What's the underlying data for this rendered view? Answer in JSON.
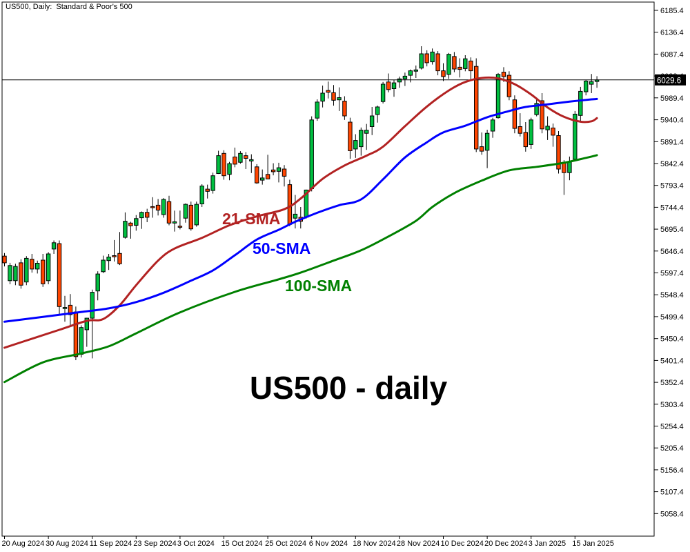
{
  "window": {
    "title": "US500, Daily:  Standard & Poor's 500"
  },
  "price_box": {
    "value": "6029.6"
  },
  "labels": {
    "main": "US500 - daily",
    "sma21": "21-SMA",
    "sma50": "50-SMA",
    "sma100": "100-SMA"
  },
  "colors": {
    "bull": "#00bf40",
    "bear": "#ff4500",
    "wick": "#000000",
    "candle_border": "#000000",
    "sma21": "#b22222",
    "sma50": "#0000ff",
    "sma100": "#008000",
    "price_line": "#000000",
    "price_box_bg": "#000000",
    "price_box_text": "#ffffff",
    "axis": "#000000",
    "background": "#ffffff"
  },
  "chart_data": {
    "type": "candlestick",
    "symbol": "US500",
    "timeframe": "Daily",
    "description": "Standard & Poor's 500",
    "title": "US500 - daily",
    "current_price": 6029.6,
    "grid": false,
    "y_axis": {
      "tick_step": 49.0,
      "ticks": [
        6185.4,
        6136.4,
        6087.4,
        6038.4,
        5989.4,
        5940.4,
        5891.4,
        5842.4,
        5793.4,
        5744.4,
        5695.4,
        5646.4,
        5597.4,
        5548.4,
        5499.4,
        5450.4,
        5401.4,
        5352.4,
        5303.4,
        5254.4,
        5205.4,
        5156.4,
        5107.4,
        5058.4
      ]
    },
    "x_axis": {
      "bars_per_label": 8,
      "labels": [
        "20 Aug 2024",
        "30 Aug 2024",
        "11 Sep 2024",
        "23 Sep 2024",
        "3 Oct 2024",
        "15 Oct 2024",
        "25 Oct 2024",
        "6 Nov 2024",
        "18 Nov 2024",
        "28 Nov 2024",
        "10 Dec 2024",
        "20 Dec 2024",
        "3 Jan 2025",
        "15 Jan 2025"
      ]
    },
    "ohlc": [
      [
        5635,
        5642,
        5612,
        5620
      ],
      [
        5580,
        5620,
        5572,
        5614
      ],
      [
        5580,
        5618,
        5570,
        5612
      ],
      [
        5620,
        5628,
        5562,
        5570
      ],
      [
        5577,
        5635,
        5570,
        5630
      ],
      [
        5628,
        5640,
        5598,
        5606
      ],
      [
        5606,
        5625,
        5596,
        5619
      ],
      [
        5626,
        5640,
        5566,
        5573
      ],
      [
        5580,
        5644,
        5572,
        5640
      ],
      [
        5651,
        5670,
        5640,
        5665
      ],
      [
        5663,
        5670,
        5504,
        5522
      ],
      [
        5518,
        5546,
        5488,
        5520
      ],
      [
        5525,
        5550,
        5477,
        5504
      ],
      [
        5510,
        5522,
        5402,
        5410
      ],
      [
        5415,
        5480,
        5408,
        5475
      ],
      [
        5470,
        5497,
        5432,
        5496
      ],
      [
        5496,
        5560,
        5406,
        5554
      ],
      [
        5557,
        5601,
        5536,
        5595
      ],
      [
        5600,
        5636,
        5597,
        5626
      ],
      [
        5625,
        5640,
        5604,
        5633
      ],
      [
        5636,
        5671,
        5623,
        5635
      ],
      [
        5641,
        5689,
        5615,
        5618
      ],
      [
        5677,
        5733,
        5674,
        5713
      ],
      [
        5709,
        5712,
        5674,
        5703
      ],
      [
        5704,
        5727,
        5692,
        5719
      ],
      [
        5721,
        5735,
        5696,
        5733
      ],
      [
        5733,
        5741,
        5711,
        5722
      ],
      [
        5746,
        5767,
        5721,
        5745
      ],
      [
        5749,
        5763,
        5726,
        5738
      ],
      [
        5728,
        5765,
        5721,
        5762
      ],
      [
        5757,
        5770,
        5704,
        5709
      ],
      [
        5709,
        5737,
        5690,
        5712
      ],
      [
        5702,
        5737,
        5695,
        5700
      ],
      [
        5720,
        5753,
        5710,
        5751
      ],
      [
        5749,
        5757,
        5692,
        5696
      ],
      [
        5705,
        5757,
        5701,
        5751
      ],
      [
        5752,
        5796,
        5745,
        5792
      ],
      [
        5785,
        5795,
        5764,
        5780
      ],
      [
        5782,
        5822,
        5775,
        5815
      ],
      [
        5820,
        5871,
        5819,
        5860
      ],
      [
        5865,
        5872,
        5806,
        5815
      ],
      [
        5818,
        5846,
        5805,
        5842
      ],
      [
        5857,
        5878,
        5834,
        5841
      ],
      [
        5845,
        5870,
        5842,
        5865
      ],
      [
        5860,
        5868,
        5830,
        5854
      ],
      [
        5848,
        5863,
        5821,
        5851
      ],
      [
        5835,
        5841,
        5797,
        5799
      ],
      [
        5805,
        5829,
        5795,
        5810
      ],
      [
        5818,
        5862,
        5808,
        5808
      ],
      [
        5828,
        5843,
        5816,
        5824
      ],
      [
        5825,
        5844,
        5800,
        5833
      ],
      [
        5830,
        5839,
        5791,
        5814
      ],
      [
        5795,
        5806,
        5702,
        5706
      ],
      [
        5720,
        5772,
        5697,
        5729
      ],
      [
        5722,
        5745,
        5697,
        5713
      ],
      [
        5722,
        5784,
        5719,
        5783
      ],
      [
        5786,
        5948,
        5780,
        5940
      ],
      [
        5944,
        5986,
        5938,
        5980
      ],
      [
        5982,
        6017,
        5968,
        6000
      ],
      [
        6006,
        6026,
        5988,
        6002
      ],
      [
        6001,
        6018,
        5972,
        5984
      ],
      [
        5985,
        6013,
        5960,
        5990
      ],
      [
        5982,
        5993,
        5940,
        5949
      ],
      [
        5935,
        5945,
        5853,
        5871
      ],
      [
        5875,
        5908,
        5855,
        5894
      ],
      [
        5880,
        5923,
        5860,
        5917
      ],
      [
        5910,
        5931,
        5873,
        5917
      ],
      [
        5925,
        5969,
        5906,
        5949
      ],
      [
        5952,
        5972,
        5934,
        5969
      ],
      [
        5981,
        6025,
        5977,
        6020
      ],
      [
        6025,
        6044,
        6002,
        6008
      ],
      [
        6010,
        6030,
        5992,
        6023
      ],
      [
        6025,
        6037,
        6012,
        6032
      ],
      [
        6032,
        6046,
        6016,
        6038
      ],
      [
        6040,
        6053,
        6024,
        6050
      ],
      [
        6049,
        6062,
        6034,
        6052
      ],
      [
        6056,
        6105,
        6053,
        6088
      ],
      [
        6088,
        6096,
        6060,
        6068
      ],
      [
        6070,
        6100,
        6064,
        6092
      ],
      [
        6088,
        6094,
        6040,
        6050
      ],
      [
        6050,
        6067,
        6027,
        6037
      ],
      [
        6042,
        6090,
        6032,
        6087
      ],
      [
        6082,
        6092,
        6047,
        6054
      ],
      [
        6058,
        6078,
        6035,
        6053
      ],
      [
        6055,
        6085,
        6049,
        6077
      ],
      [
        6072,
        6080,
        6031,
        6050
      ],
      [
        6060,
        6078,
        5868,
        5875
      ],
      [
        5880,
        5912,
        5862,
        5870
      ],
      [
        5872,
        5918,
        5832,
        5910
      ],
      [
        5915,
        5945,
        5900,
        5940
      ],
      [
        5945,
        6045,
        5943,
        6042
      ],
      [
        6047,
        6058,
        6025,
        6037
      ],
      [
        6040,
        6049,
        5984,
        5992
      ],
      [
        5985,
        5995,
        5910,
        5921
      ],
      [
        5925,
        5955,
        5903,
        5910
      ],
      [
        5912,
        5935,
        5869,
        5880
      ],
      [
        5885,
        5945,
        5875,
        5940
      ],
      [
        5952,
        5990,
        5948,
        5977
      ],
      [
        5983,
        6000,
        5910,
        5920
      ],
      [
        5918,
        5948,
        5895,
        5926
      ],
      [
        5922,
        5932,
        5880,
        5906
      ],
      [
        5905,
        5915,
        5820,
        5830
      ],
      [
        5845,
        5850,
        5772,
        5822
      ],
      [
        5822,
        5858,
        5805,
        5847
      ],
      [
        5852,
        5960,
        5850,
        5953
      ],
      [
        5950,
        6014,
        5935,
        6004
      ],
      [
        6003,
        6030,
        5995,
        6027
      ],
      [
        6020,
        6043,
        6000,
        6026
      ],
      [
        6026,
        6038,
        6012,
        6029.6
      ]
    ],
    "overlays": [
      {
        "name": "21-SMA",
        "period": 21,
        "color": "#b22222",
        "points": [
          [
            0,
            5430
          ],
          [
            5,
            5450
          ],
          [
            10,
            5470
          ],
          [
            15,
            5490
          ],
          [
            18,
            5494
          ],
          [
            21,
            5525
          ],
          [
            24,
            5570
          ],
          [
            28,
            5625
          ],
          [
            31,
            5652
          ],
          [
            36,
            5676
          ],
          [
            41,
            5704
          ],
          [
            46,
            5724
          ],
          [
            51,
            5740
          ],
          [
            54,
            5764
          ],
          [
            58,
            5808
          ],
          [
            62,
            5838
          ],
          [
            66,
            5860
          ],
          [
            69,
            5880
          ],
          [
            73,
            5926
          ],
          [
            77,
            5970
          ],
          [
            81,
            6006
          ],
          [
            84,
            6025
          ],
          [
            87,
            6034
          ],
          [
            90,
            6033
          ],
          [
            93,
            6020
          ],
          [
            96,
            5997
          ],
          [
            99,
            5968
          ],
          [
            102,
            5947
          ],
          [
            105,
            5936
          ],
          [
            107,
            5937
          ],
          [
            108,
            5944
          ]
        ]
      },
      {
        "name": "50-SMA",
        "period": 50,
        "color": "#0000ff",
        "points": [
          [
            0,
            5488
          ],
          [
            7,
            5499
          ],
          [
            14,
            5510
          ],
          [
            19,
            5518
          ],
          [
            24,
            5532
          ],
          [
            29,
            5553
          ],
          [
            34,
            5580
          ],
          [
            38,
            5603
          ],
          [
            42,
            5637
          ],
          [
            46,
            5672
          ],
          [
            50,
            5694
          ],
          [
            53,
            5712
          ],
          [
            57,
            5732
          ],
          [
            61,
            5749
          ],
          [
            65,
            5762
          ],
          [
            69,
            5807
          ],
          [
            73,
            5856
          ],
          [
            77,
            5890
          ],
          [
            80,
            5912
          ],
          [
            84,
            5927
          ],
          [
            88,
            5946
          ],
          [
            92,
            5960
          ],
          [
            95,
            5969
          ],
          [
            99,
            5975
          ],
          [
            103,
            5981
          ],
          [
            107,
            5986
          ],
          [
            108,
            5987
          ]
        ]
      },
      {
        "name": "100-SMA",
        "period": 100,
        "color": "#008000",
        "points": [
          [
            0,
            5353
          ],
          [
            7,
            5397
          ],
          [
            14,
            5417
          ],
          [
            19,
            5433
          ],
          [
            24,
            5462
          ],
          [
            32,
            5509
          ],
          [
            42,
            5555
          ],
          [
            50,
            5583
          ],
          [
            54,
            5598
          ],
          [
            60,
            5625
          ],
          [
            65,
            5648
          ],
          [
            70,
            5679
          ],
          [
            75,
            5714
          ],
          [
            78,
            5745
          ],
          [
            82,
            5776
          ],
          [
            87,
            5804
          ],
          [
            92,
            5827
          ],
          [
            97,
            5835
          ],
          [
            102,
            5844
          ],
          [
            106,
            5855
          ],
          [
            108,
            5861
          ]
        ]
      }
    ]
  }
}
